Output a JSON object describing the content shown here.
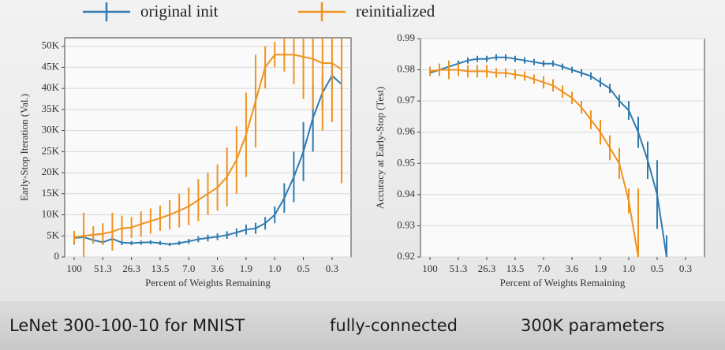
{
  "chart_data": [
    {
      "type": "line",
      "ylabel": "Early-Stop Iteration (Val.)",
      "xlabel": "Percent of Weights Remaining",
      "categories": [
        "100",
        null,
        null,
        "51.3",
        null,
        null,
        "26.3",
        null,
        null,
        "13.5",
        null,
        null,
        "7.0",
        null,
        null,
        "3.6",
        null,
        null,
        "1.9",
        null,
        null,
        "1.0",
        null,
        null,
        "0.5",
        null,
        null,
        "0.3",
        null
      ],
      "ylim": [
        0,
        52000
      ],
      "yticks": [
        0,
        {
          "value": 5000,
          "label": "5K"
        },
        {
          "value": 10000,
          "label": "10K"
        },
        {
          "value": 15000,
          "label": "15K"
        },
        {
          "value": 20000,
          "label": "20K"
        },
        {
          "value": 25000,
          "label": "25K"
        },
        {
          "value": 30000,
          "label": "30K"
        },
        {
          "value": 35000,
          "label": "35K"
        },
        {
          "value": 40000,
          "label": "40K"
        },
        {
          "value": 45000,
          "label": "45K"
        },
        {
          "value": 50000,
          "label": "50K"
        }
      ],
      "grid": true,
      "series": [
        {
          "name": "original init",
          "color": "#2f7bb0",
          "values": [
            4500,
            4700,
            4000,
            3500,
            4300,
            3400,
            3300,
            3400,
            3500,
            3300,
            3000,
            3300,
            3700,
            4200,
            4500,
            4800,
            5200,
            5800,
            6500,
            6800,
            8000,
            10000,
            14000,
            19000,
            25000,
            33000,
            39000,
            43000,
            41000
          ],
          "errors": [
            1500,
            1000,
            800,
            600,
            800,
            600,
            500,
            500,
            500,
            500,
            400,
            500,
            600,
            700,
            800,
            800,
            900,
            1000,
            1200,
            1300,
            1500,
            2000,
            3500,
            6000,
            7000,
            8000,
            4000,
            3000,
            2500
          ]
        },
        {
          "name": "reinitialized",
          "color": "#f0921e",
          "values": [
            4700,
            5000,
            5300,
            5500,
            6000,
            6800,
            7000,
            7800,
            8500,
            9200,
            10000,
            11000,
            12000,
            13500,
            15000,
            16500,
            19000,
            23000,
            29000,
            37000,
            45000,
            48000,
            48000,
            48000,
            47500,
            47000,
            46000,
            46000,
            44500
          ],
          "errors": [
            1500,
            5500,
            2000,
            2500,
            4500,
            3000,
            2500,
            3000,
            3000,
            3000,
            3500,
            4000,
            4500,
            5000,
            5000,
            5500,
            7000,
            8000,
            10000,
            11000,
            5000,
            3000,
            4000,
            7000,
            10000,
            12000,
            16000,
            14000,
            27000
          ]
        }
      ]
    },
    {
      "type": "line",
      "ylabel": "Accuracy at Early-Stop (Test)",
      "xlabel": "Percent of Weights Remaining",
      "categories": [
        "100",
        null,
        null,
        "51.3",
        null,
        null,
        "26.3",
        null,
        null,
        "13.5",
        null,
        null,
        "7.0",
        null,
        null,
        "3.6",
        null,
        null,
        "1.9",
        null,
        null,
        "1.0",
        null,
        null,
        "0.5",
        null,
        null,
        "0.3",
        null
      ],
      "ylim": [
        0.92,
        0.99
      ],
      "yticks": [
        0.92,
        0.93,
        0.94,
        0.95,
        0.96,
        0.97,
        0.98,
        0.99
      ],
      "grid": true,
      "series": [
        {
          "color": "#2f7bb0",
          "values": [
            0.979,
            0.98,
            0.981,
            0.982,
            0.983,
            0.9835,
            0.9835,
            0.984,
            0.984,
            0.9835,
            0.983,
            0.9825,
            0.982,
            0.982,
            0.981,
            0.98,
            0.979,
            0.978,
            0.976,
            0.974,
            0.97,
            0.967,
            0.96,
            0.951,
            0.94,
            0.92,
            null,
            null,
            null
          ],
          "errors": [
            0.001,
            0.001,
            0.001,
            0.001,
            0.001,
            0.001,
            0.001,
            0.001,
            0.001,
            0.001,
            0.001,
            0.001,
            0.001,
            0.001,
            0.001,
            0.001,
            0.0012,
            0.0012,
            0.0015,
            0.0015,
            0.002,
            0.003,
            0.005,
            0.006,
            0.011,
            0.007,
            null,
            null,
            null
          ]
        },
        {
          "color": "#f0921e",
          "values": [
            0.9795,
            0.98,
            0.98,
            0.98,
            0.9795,
            0.9795,
            0.9795,
            0.979,
            0.979,
            0.9785,
            0.978,
            0.977,
            0.976,
            0.975,
            0.973,
            0.971,
            0.968,
            0.964,
            0.96,
            0.955,
            0.95,
            0.938,
            0.92,
            null,
            null,
            null,
            null,
            null,
            null
          ],
          "errors": [
            0.0015,
            0.002,
            0.003,
            0.002,
            0.002,
            0.002,
            0.002,
            0.0015,
            0.0015,
            0.0015,
            0.0015,
            0.0015,
            0.002,
            0.002,
            0.002,
            0.002,
            0.002,
            0.003,
            0.004,
            0.004,
            0.005,
            0.004,
            0.022,
            null,
            null,
            null,
            null,
            null,
            null
          ]
        }
      ]
    }
  ],
  "footer": {
    "model": "LeNet 300-100-10 for MNIST",
    "architecture": "fully-connected",
    "parameters": "300K parameters"
  }
}
